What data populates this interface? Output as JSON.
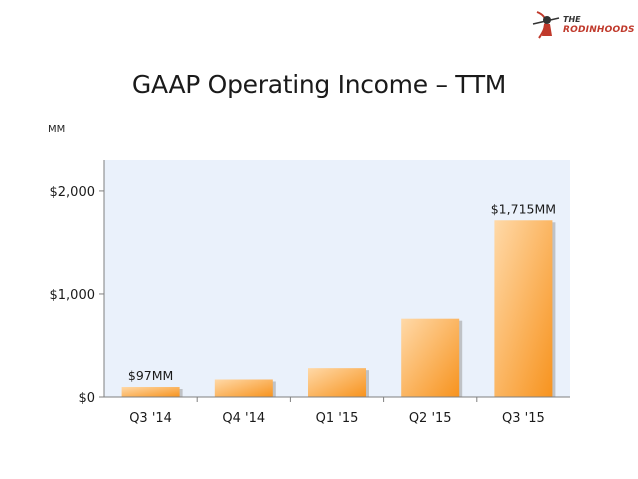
{
  "logo": {
    "line1": "THE",
    "line2": "RODINHOODS"
  },
  "chart_data": {
    "type": "bar",
    "title": "GAAP Operating Income – TTM",
    "unit_label": "MM",
    "categories": [
      "Q3 '14",
      "Q4 '14",
      "Q1 '15",
      "Q2 '15",
      "Q3 '15"
    ],
    "values": [
      97,
      170,
      280,
      760,
      1715
    ],
    "data_labels": [
      "$97MM",
      "",
      "",
      "",
      "$1,715MM"
    ],
    "y_ticks": [
      0,
      1000,
      2000
    ],
    "y_tick_labels": [
      "$0",
      "$1,000",
      "$2,000"
    ],
    "ylim": [
      0,
      2300
    ],
    "xlabel": "",
    "ylabel": "",
    "grid": false,
    "colors": {
      "bar_light": "#ffd9a8",
      "bar_dark": "#f7931e",
      "plot_bg": "#eaf1fb",
      "axis": "#7f7f7f"
    }
  }
}
